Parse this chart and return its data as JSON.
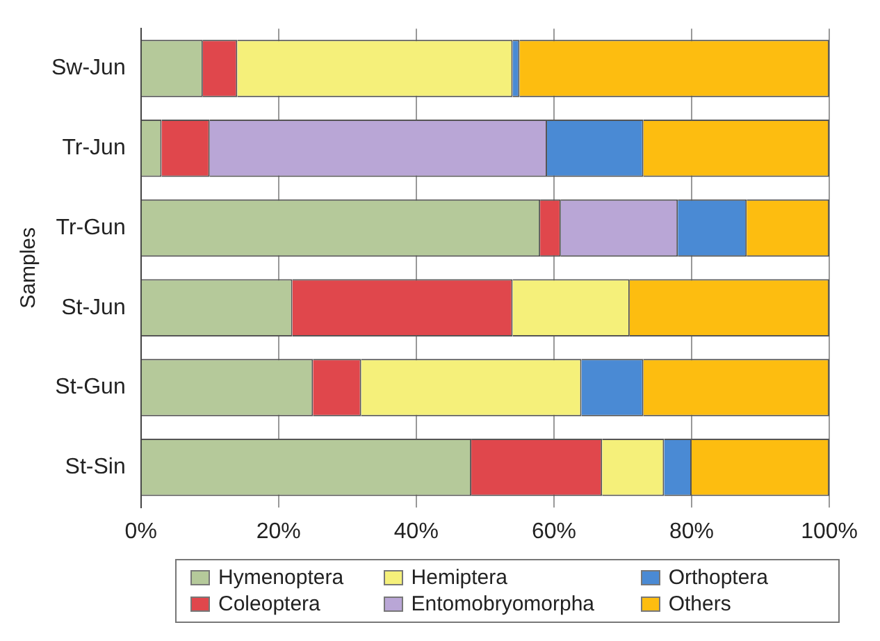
{
  "chart_data": {
    "type": "bar",
    "orientation": "horizontal",
    "stacked": true,
    "ylabel": "Samples",
    "categories": [
      "Sw-Jun",
      "Tr-Jun",
      "Tr-Gun",
      "St-Jun",
      "St-Gun",
      "St-Sin"
    ],
    "series": [
      {
        "name": "Hymenoptera",
        "color": "#b5c99a",
        "values": [
          9,
          3,
          58,
          22,
          25,
          48
        ]
      },
      {
        "name": "Coleoptera",
        "color": "#e0474c",
        "values": [
          5,
          7,
          3,
          32,
          7,
          19
        ]
      },
      {
        "name": "Hemiptera",
        "color": "#f5f07a",
        "values": [
          40,
          0,
          0,
          17,
          32,
          9
        ]
      },
      {
        "name": "Entomobryomorpha",
        "color": "#b9a6d6",
        "values": [
          0,
          49,
          17,
          0,
          0,
          0
        ]
      },
      {
        "name": "Orthoptera",
        "color": "#4a8ad4",
        "values": [
          1,
          14,
          10,
          0,
          9,
          4
        ]
      },
      {
        "name": "Others",
        "color": "#fdbd10",
        "values": [
          45,
          27,
          12,
          29,
          27,
          20
        ]
      }
    ],
    "xlim": [
      0,
      100
    ],
    "xticks": [
      {
        "value": 0,
        "label": "0%"
      },
      {
        "value": 20,
        "label": "20%"
      },
      {
        "value": 40,
        "label": "40%"
      },
      {
        "value": 60,
        "label": "60%"
      },
      {
        "value": 80,
        "label": "80%"
      },
      {
        "value": 100,
        "label": "100%"
      }
    ],
    "grid": "x",
    "legend": "bottom"
  }
}
